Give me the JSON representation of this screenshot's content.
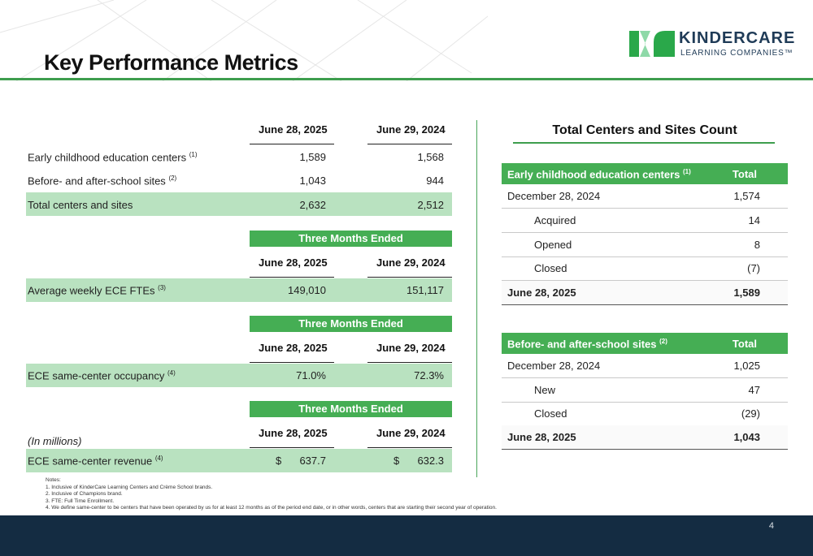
{
  "page": {
    "title": "Key Performance Metrics",
    "page_number": "4"
  },
  "logo": {
    "name": "KINDERCARE",
    "subtitle": "LEARNING COMPANIES™",
    "colors": {
      "green": "#2aa84a",
      "light_green": "#8ed9a8",
      "navy": "#1f3b57"
    }
  },
  "left": {
    "headers": {
      "col1": "June 28, 2025",
      "col2": "June 29, 2024"
    },
    "section1": [
      {
        "label": "Early childhood education centers",
        "sup": "(1)",
        "v1": "1,589",
        "v2": "1,568"
      },
      {
        "label": "Before- and after-school sites",
        "sup": "(2)",
        "v1": "1,043",
        "v2": "944"
      },
      {
        "label": "Total centers and sites",
        "sup": "",
        "v1": "2,632",
        "v2": "2,512"
      }
    ],
    "band_label": "Three Months Ended",
    "fte": {
      "label": "Average weekly ECE FTEs",
      "sup": "(3)",
      "v1": "149,010",
      "v2": "151,117"
    },
    "occupancy": {
      "label": "ECE same-center occupancy",
      "sup": "(4)",
      "v1": "71.0%",
      "v2": "72.3%"
    },
    "in_millions": "(In millions)",
    "revenue": {
      "label": "ECE same-center revenue",
      "sup": "(4)",
      "currency": "$",
      "v1": "637.7",
      "v2": "632.3"
    }
  },
  "right": {
    "title": "Total Centers and Sites Count",
    "total_header": "Total",
    "ece": {
      "header": "Early childhood education centers",
      "header_sup": "(1)",
      "rows": [
        {
          "label": "December 28, 2024",
          "value": "1,574"
        },
        {
          "label": "Acquired",
          "value": "14"
        },
        {
          "label": "Opened",
          "value": "8"
        },
        {
          "label": "Closed",
          "value": "(7)"
        }
      ],
      "total": {
        "label": "June 28, 2025",
        "value": "1,589"
      }
    },
    "bas": {
      "header": "Before- and after-school sites",
      "header_sup": "(2)",
      "rows": [
        {
          "label": "December 28, 2024",
          "value": "1,025"
        },
        {
          "label": "New",
          "value": "47"
        },
        {
          "label": "Closed",
          "value": "(29)"
        }
      ],
      "total": {
        "label": "June 28, 2025",
        "value": "1,043"
      }
    }
  },
  "notes": {
    "heading": "Notes:",
    "items": [
      "1. Inclusive of KinderCare Learning Centers and Crème School brands.",
      "2. Inclusive of Champions brand.",
      "3. FTE: Full Time Enrollment.",
      "4. We define same-center to be centers that have been operated by us for at least 12 months as of the period end date, or in other words, centers that are starting their second year of operation."
    ]
  }
}
